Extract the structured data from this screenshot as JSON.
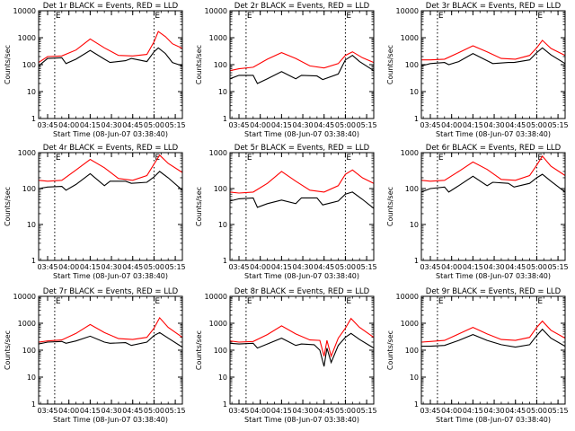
{
  "figure": {
    "ylabel": "Counts/sec",
    "xlabel": "Start Time (08-Jun-07 03:38:40)",
    "x_tick_labels": [
      "03:45",
      "04:00",
      "04:15",
      "04:30",
      "04:45",
      "05:00",
      "05:15"
    ],
    "y_tick_labels": [
      "1",
      "10",
      "100",
      "1000",
      "10000"
    ],
    "marker_labels": [
      "E",
      "E"
    ],
    "colors": {
      "events": "#000000",
      "lld": "#ff0000",
      "axes": "#000000",
      "background": "#ffffff"
    }
  },
  "chart_data": [
    {
      "type": "line",
      "title": "Det 1r BLACK = Events, RED = LLD",
      "xlim": [
        "03:38:40",
        "05:20:00"
      ],
      "ylim": [
        1,
        10000
      ],
      "yscale": "log",
      "vlines": [
        "03:50:00",
        "05:00:00"
      ],
      "series": [
        {
          "name": "Events",
          "color": "#000000",
          "x": [
            "03:38:40",
            "03:45:00",
            "03:55:00",
            "03:58:00",
            "04:05:00",
            "04:15:00",
            "04:25:00",
            "04:29:00",
            "04:40:00",
            "04:44:00",
            "04:55:00",
            "05:00:00",
            "05:03:00",
            "05:08:00",
            "05:13:00",
            "05:20:00"
          ],
          "y": [
            90,
            170,
            180,
            110,
            160,
            340,
            160,
            120,
            140,
            170,
            130,
            300,
            420,
            260,
            120,
            90
          ]
        },
        {
          "name": "LLD",
          "color": "#ff0000",
          "x": [
            "03:38:40",
            "03:45:00",
            "03:55:00",
            "04:05:00",
            "04:15:00",
            "04:25:00",
            "04:35:00",
            "04:45:00",
            "04:55:00",
            "05:00:00",
            "05:03:00",
            "05:08:00",
            "05:13:00",
            "05:20:00"
          ],
          "y": [
            120,
            200,
            210,
            350,
            900,
            420,
            220,
            210,
            240,
            700,
            1700,
            1100,
            600,
            400
          ]
        }
      ]
    },
    {
      "type": "line",
      "title": "Det 2r BLACK = Events, RED = LLD",
      "xlim": [
        "03:38:40",
        "05:20:00"
      ],
      "ylim": [
        1,
        10000
      ],
      "yscale": "log",
      "vlines": [
        "03:50:00",
        "05:00:00"
      ],
      "series": [
        {
          "name": "Events",
          "color": "#000000",
          "x": [
            "03:38:40",
            "03:45:00",
            "03:55:00",
            "03:58:00",
            "04:05:00",
            "04:15:00",
            "04:25:00",
            "04:29:00",
            "04:40:00",
            "04:44:00",
            "04:55:00",
            "05:00:00",
            "05:05:00",
            "05:10:00",
            "05:20:00"
          ],
          "y": [
            30,
            40,
            40,
            20,
            30,
            55,
            30,
            40,
            38,
            28,
            45,
            150,
            220,
            130,
            60
          ]
        },
        {
          "name": "LLD",
          "color": "#ff0000",
          "x": [
            "03:38:40",
            "03:45:00",
            "03:55:00",
            "04:05:00",
            "04:15:00",
            "04:25:00",
            "04:35:00",
            "04:45:00",
            "04:55:00",
            "05:00:00",
            "05:05:00",
            "05:12:00",
            "05:20:00"
          ],
          "y": [
            60,
            70,
            80,
            160,
            280,
            170,
            90,
            75,
            110,
            220,
            300,
            180,
            120
          ]
        }
      ]
    },
    {
      "type": "line",
      "title": "Det 3r BLACK = Events, RED = LLD",
      "xlim": [
        "03:38:40",
        "05:20:00"
      ],
      "ylim": [
        1,
        10000
      ],
      "yscale": "log",
      "vlines": [
        "03:50:00",
        "05:00:00"
      ],
      "series": [
        {
          "name": "Events",
          "color": "#000000",
          "x": [
            "03:38:40",
            "03:45:00",
            "03:55:00",
            "03:58:00",
            "04:05:00",
            "04:15:00",
            "04:25:00",
            "04:29:00",
            "04:40:00",
            "04:44:00",
            "04:55:00",
            "05:00:00",
            "05:04:00",
            "05:10:00",
            "05:20:00"
          ],
          "y": [
            90,
            110,
            120,
            100,
            130,
            260,
            140,
            110,
            120,
            120,
            150,
            280,
            420,
            230,
            110
          ]
        },
        {
          "name": "LLD",
          "color": "#ff0000",
          "x": [
            "03:38:40",
            "03:45:00",
            "03:55:00",
            "04:05:00",
            "04:15:00",
            "04:25:00",
            "04:35:00",
            "04:45:00",
            "04:55:00",
            "05:00:00",
            "05:04:00",
            "05:10:00",
            "05:20:00"
          ],
          "y": [
            150,
            150,
            160,
            280,
            500,
            300,
            170,
            160,
            220,
            420,
            800,
            400,
            220
          ]
        }
      ]
    },
    {
      "type": "line",
      "title": "Det 4r BLACK = Events, RED = LLD",
      "xlim": [
        "03:38:40",
        "05:20:00"
      ],
      "ylim": [
        1,
        1000
      ],
      "yscale": "log",
      "vlines": [
        "03:50:00",
        "05:00:00"
      ],
      "series": [
        {
          "name": "Events",
          "color": "#000000",
          "x": [
            "03:38:40",
            "03:45:00",
            "03:55:00",
            "03:58:00",
            "04:05:00",
            "04:15:00",
            "04:25:00",
            "04:29:00",
            "04:40:00",
            "04:44:00",
            "04:55:00",
            "05:00:00",
            "05:04:00",
            "05:10:00",
            "05:20:00"
          ],
          "y": [
            100,
            110,
            115,
            90,
            130,
            260,
            120,
            160,
            160,
            140,
            150,
            210,
            300,
            200,
            90
          ]
        },
        {
          "name": "LLD",
          "color": "#ff0000",
          "x": [
            "03:38:40",
            "03:45:00",
            "03:55:00",
            "04:05:00",
            "04:15:00",
            "04:25:00",
            "04:35:00",
            "04:45:00",
            "04:55:00",
            "05:00:00",
            "05:04:00",
            "05:10:00",
            "05:20:00"
          ],
          "y": [
            170,
            160,
            170,
            330,
            650,
            380,
            190,
            170,
            230,
            480,
            850,
            500,
            280
          ]
        }
      ]
    },
    {
      "type": "line",
      "title": "Det 5r BLACK = Events, RED = LLD",
      "xlim": [
        "03:38:40",
        "05:20:00"
      ],
      "ylim": [
        1,
        1000
      ],
      "yscale": "log",
      "vlines": [
        "03:50:00",
        "05:00:00"
      ],
      "series": [
        {
          "name": "Events",
          "color": "#000000",
          "x": [
            "03:38:40",
            "03:45:00",
            "03:55:00",
            "03:58:00",
            "04:05:00",
            "04:15:00",
            "04:25:00",
            "04:29:00",
            "04:40:00",
            "04:44:00",
            "04:55:00",
            "05:00:00",
            "05:05:00",
            "05:12:00",
            "05:20:00"
          ],
          "y": [
            45,
            52,
            55,
            30,
            38,
            48,
            38,
            55,
            55,
            35,
            45,
            70,
            80,
            50,
            28
          ]
        },
        {
          "name": "LLD",
          "color": "#ff0000",
          "x": [
            "03:38:40",
            "03:45:00",
            "03:55:00",
            "04:05:00",
            "04:15:00",
            "04:25:00",
            "04:35:00",
            "04:45:00",
            "04:55:00",
            "05:00:00",
            "05:05:00",
            "05:12:00",
            "05:20:00"
          ],
          "y": [
            80,
            75,
            80,
            140,
            300,
            160,
            90,
            80,
            120,
            250,
            330,
            200,
            140
          ]
        }
      ]
    },
    {
      "type": "line",
      "title": "Det 6r BLACK = Events, RED = LLD",
      "xlim": [
        "03:38:40",
        "05:20:00"
      ],
      "ylim": [
        1,
        1000
      ],
      "yscale": "log",
      "vlines": [
        "03:50:00",
        "05:00:00"
      ],
      "series": [
        {
          "name": "Events",
          "color": "#000000",
          "x": [
            "03:38:40",
            "03:45:00",
            "03:55:00",
            "03:58:00",
            "04:05:00",
            "04:15:00",
            "04:25:00",
            "04:29:00",
            "04:40:00",
            "04:44:00",
            "04:55:00",
            "05:00:00",
            "05:04:00",
            "05:10:00",
            "05:20:00"
          ],
          "y": [
            80,
            100,
            110,
            80,
            120,
            220,
            120,
            150,
            140,
            110,
            140,
            200,
            250,
            160,
            80
          ]
        },
        {
          "name": "LLD",
          "color": "#ff0000",
          "x": [
            "03:38:40",
            "03:45:00",
            "03:55:00",
            "04:05:00",
            "04:15:00",
            "04:25:00",
            "04:35:00",
            "04:45:00",
            "04:55:00",
            "05:00:00",
            "05:04:00",
            "05:10:00",
            "05:20:00"
          ],
          "y": [
            170,
            160,
            170,
            300,
            550,
            340,
            180,
            170,
            230,
            450,
            800,
            420,
            230
          ]
        }
      ]
    },
    {
      "type": "line",
      "title": "Det 7r BLACK = Events, RED = LLD",
      "xlim": [
        "03:38:40",
        "05:20:00"
      ],
      "ylim": [
        1,
        10000
      ],
      "yscale": "log",
      "vlines": [
        "03:50:00",
        "05:00:00"
      ],
      "series": [
        {
          "name": "Events",
          "color": "#000000",
          "x": [
            "03:38:40",
            "03:45:00",
            "03:55:00",
            "03:58:00",
            "04:05:00",
            "04:15:00",
            "04:25:00",
            "04:29:00",
            "04:40:00",
            "04:44:00",
            "04:55:00",
            "05:00:00",
            "05:04:00",
            "05:10:00",
            "05:20:00"
          ],
          "y": [
            170,
            200,
            210,
            180,
            220,
            330,
            200,
            180,
            190,
            150,
            200,
            350,
            450,
            280,
            130
          ]
        },
        {
          "name": "LLD",
          "color": "#ff0000",
          "x": [
            "03:38:40",
            "03:45:00",
            "03:55:00",
            "04:05:00",
            "04:15:00",
            "04:25:00",
            "04:35:00",
            "04:45:00",
            "04:55:00",
            "05:00:00",
            "05:04:00",
            "05:10:00",
            "05:20:00"
          ],
          "y": [
            200,
            220,
            240,
            420,
            900,
            450,
            270,
            250,
            300,
            650,
            1600,
            700,
            300
          ]
        }
      ]
    },
    {
      "type": "line",
      "title": "Det 8r BLACK = Events, RED = LLD",
      "xlim": [
        "03:38:40",
        "05:20:00"
      ],
      "ylim": [
        1,
        10000
      ],
      "yscale": "log",
      "vlines": [
        "03:50:00",
        "05:00:00"
      ],
      "series": [
        {
          "name": "Events",
          "color": "#000000",
          "x": [
            "03:38:40",
            "03:45:00",
            "03:55:00",
            "03:58:00",
            "04:05:00",
            "04:15:00",
            "04:25:00",
            "04:29:00",
            "04:38:00",
            "04:42:00",
            "04:45:00",
            "04:47:00",
            "04:50:00",
            "04:55:00",
            "05:00:00",
            "05:04:00",
            "05:10:00",
            "05:20:00"
          ],
          "y": [
            180,
            170,
            180,
            120,
            170,
            280,
            150,
            170,
            160,
            100,
            25,
            120,
            35,
            150,
            300,
            420,
            250,
            120
          ]
        },
        {
          "name": "LLD",
          "color": "#ff0000",
          "x": [
            "03:38:40",
            "03:45:00",
            "03:55:00",
            "04:05:00",
            "04:15:00",
            "04:25:00",
            "04:35:00",
            "04:42:00",
            "04:45:00",
            "04:47:00",
            "04:50:00",
            "04:55:00",
            "05:00:00",
            "05:04:00",
            "05:10:00",
            "05:20:00"
          ],
          "y": [
            220,
            200,
            210,
            380,
            800,
            400,
            240,
            230,
            60,
            230,
            60,
            280,
            650,
            1500,
            700,
            300
          ]
        }
      ]
    },
    {
      "type": "line",
      "title": "Det 9r BLACK = Events, RED = LLD",
      "xlim": [
        "03:38:40",
        "05:20:00"
      ],
      "ylim": [
        1,
        10000
      ],
      "yscale": "log",
      "vlines": [
        "03:50:00",
        "05:00:00"
      ],
      "series": [
        {
          "name": "Events",
          "color": "#000000",
          "x": [
            "03:38:40",
            "03:45:00",
            "03:55:00",
            "04:05:00",
            "04:15:00",
            "04:25:00",
            "04:35:00",
            "04:45:00",
            "04:55:00",
            "05:00:00",
            "05:04:00",
            "05:10:00",
            "05:20:00"
          ],
          "y": [
            140,
            140,
            150,
            230,
            380,
            230,
            160,
            130,
            160,
            350,
            600,
            280,
            140
          ]
        },
        {
          "name": "LLD",
          "color": "#ff0000",
          "x": [
            "03:38:40",
            "03:45:00",
            "03:55:00",
            "04:05:00",
            "04:15:00",
            "04:25:00",
            "04:35:00",
            "04:45:00",
            "04:55:00",
            "05:00:00",
            "05:04:00",
            "05:10:00",
            "05:20:00"
          ],
          "y": [
            200,
            210,
            230,
            400,
            700,
            400,
            250,
            230,
            300,
            700,
            1200,
            550,
            280
          ]
        }
      ]
    }
  ]
}
